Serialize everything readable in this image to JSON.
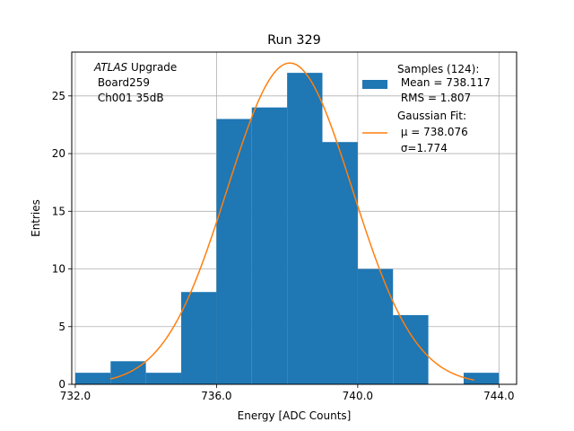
{
  "chart_data": {
    "type": "bar",
    "title": "Run 329",
    "xlabel": "Energy [ADC Counts]",
    "ylabel": "Entries",
    "xlim": [
      731.9,
      744.5
    ],
    "ylim": [
      0,
      28.8
    ],
    "x_ticks": [
      732.0,
      736.0,
      740.0,
      744.0
    ],
    "x_tick_labels": [
      "732.0",
      "736.0",
      "740.0",
      "744.0"
    ],
    "y_ticks": [
      0,
      5,
      10,
      15,
      20,
      25
    ],
    "y_tick_labels": [
      "0",
      "5",
      "10",
      "15",
      "20",
      "25"
    ],
    "grid": true,
    "annotation": {
      "line1_italic": "ATLAS",
      "line1_rest": " Upgrade",
      "line2": " Board259",
      "line3": " Ch001 35dB"
    },
    "legend": {
      "placement": "top-right",
      "hist_lines": [
        "Samples (124):",
        " Mean = 738.117",
        " RMS = 1.807"
      ],
      "fit_lines": [
        "Gaussian Fit:",
        " μ = 738.076",
        " σ=1.774"
      ]
    },
    "histogram": {
      "color": "#1f77b4",
      "bins": [
        {
          "x0": 732,
          "x1": 733,
          "count": 1
        },
        {
          "x0": 733,
          "x1": 734,
          "count": 2
        },
        {
          "x0": 734,
          "x1": 735,
          "count": 1
        },
        {
          "x0": 735,
          "x1": 736,
          "count": 8
        },
        {
          "x0": 736,
          "x1": 737,
          "count": 23
        },
        {
          "x0": 737,
          "x1": 738,
          "count": 24
        },
        {
          "x0": 738,
          "x1": 739,
          "count": 27
        },
        {
          "x0": 739,
          "x1": 740,
          "count": 21
        },
        {
          "x0": 740,
          "x1": 741,
          "count": 10
        },
        {
          "x0": 741,
          "x1": 742,
          "count": 6
        },
        {
          "x0": 742,
          "x1": 743,
          "count": 0
        },
        {
          "x0": 743,
          "x1": 744,
          "count": 1
        }
      ]
    },
    "fit": {
      "color": "#ff7f0e",
      "mu": 738.076,
      "sigma": 1.774,
      "amplitude": 27.85,
      "range": [
        733.0,
        743.3
      ]
    }
  }
}
